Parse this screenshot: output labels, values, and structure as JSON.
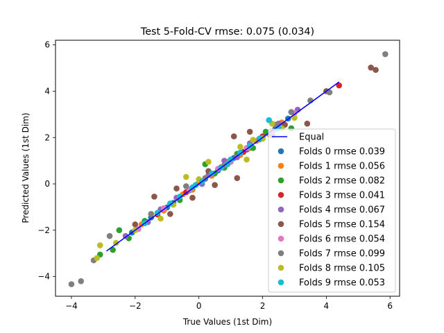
{
  "chart_data": {
    "type": "scatter",
    "title": "Test 5-Fold-CV rmse: 0.075 (0.034)",
    "xlabel": "True Values (1st Dim)",
    "ylabel": "Predicted Values (1st Dim)",
    "xlim": [
      -4.5,
      6.3
    ],
    "ylim": [
      -4.85,
      6.2
    ],
    "xticks": [
      -4,
      -2,
      0,
      2,
      4,
      6
    ],
    "yticks": [
      -4,
      -2,
      0,
      2,
      4,
      6
    ],
    "grid": false,
    "legend_position": "lower right",
    "line": {
      "name": "Equal",
      "color": "#0000ff",
      "x": [
        -2.9,
        4.4
      ],
      "y": [
        -2.9,
        4.4
      ]
    },
    "series": [
      {
        "name": "Folds 0 rmse 0.039",
        "color": "#1f77b4",
        "points": [
          [
            -2.1,
            -2.1
          ],
          [
            -1.5,
            -1.45
          ],
          [
            -0.8,
            -0.82
          ],
          [
            -0.3,
            -0.28
          ],
          [
            0.2,
            0.22
          ],
          [
            0.6,
            0.58
          ],
          [
            1.1,
            1.12
          ],
          [
            1.5,
            1.48
          ],
          [
            1.9,
            1.92
          ],
          [
            2.4,
            2.38
          ],
          [
            2.8,
            2.82
          ],
          [
            -1.0,
            -1.02
          ],
          [
            0.9,
            0.92
          ]
        ]
      },
      {
        "name": "Folds 1 rmse 0.056",
        "color": "#ff7f0e",
        "points": [
          [
            -1.8,
            -1.75
          ],
          [
            -1.1,
            -1.15
          ],
          [
            -0.5,
            -0.45
          ],
          [
            0.0,
            0.05
          ],
          [
            0.4,
            0.35
          ],
          [
            0.9,
            0.95
          ],
          [
            1.3,
            1.25
          ],
          [
            1.8,
            1.85
          ],
          [
            2.2,
            2.15
          ],
          [
            2.6,
            2.65
          ],
          [
            -0.2,
            -0.25
          ],
          [
            1.6,
            1.55
          ]
        ]
      },
      {
        "name": "Folds 2 rmse 0.082",
        "color": "#2ca02c",
        "points": [
          [
            -3.1,
            -3.05
          ],
          [
            -2.7,
            -2.85
          ],
          [
            -2.5,
            -2.0
          ],
          [
            -2.2,
            -2.35
          ],
          [
            -1.7,
            -1.6
          ],
          [
            -0.9,
            -0.85
          ],
          [
            0.2,
            0.85
          ],
          [
            0.5,
            0.45
          ],
          [
            0.8,
            0.7
          ],
          [
            1.2,
            1.3
          ],
          [
            1.7,
            1.55
          ],
          [
            2.1,
            2.25
          ],
          [
            2.3,
            2.1
          ],
          [
            2.6,
            2.5
          ],
          [
            2.9,
            2.4
          ],
          [
            -0.6,
            -0.7
          ]
        ]
      },
      {
        "name": "Folds 3 rmse 0.041",
        "color": "#d62728",
        "points": [
          [
            4.4,
            4.25
          ],
          [
            -1.3,
            -1.32
          ],
          [
            -0.4,
            -0.36
          ],
          [
            0.7,
            0.72
          ],
          [
            1.4,
            1.38
          ],
          [
            2.0,
            2.05
          ],
          [
            2.5,
            2.48
          ]
        ]
      },
      {
        "name": "Folds 4 rmse 0.067",
        "color": "#9467bd",
        "points": [
          [
            -2.3,
            -2.25
          ],
          [
            -1.6,
            -1.65
          ],
          [
            -0.7,
            -0.6
          ],
          [
            0.3,
            0.38
          ],
          [
            0.8,
            1.0
          ],
          [
            1.2,
            1.15
          ],
          [
            1.6,
            1.75
          ],
          [
            2.0,
            2.0
          ],
          [
            2.5,
            2.6
          ],
          [
            2.9,
            3.1
          ],
          [
            3.1,
            3.2
          ],
          [
            -1.2,
            -1.1
          ],
          [
            0.1,
            0.0
          ]
        ]
      },
      {
        "name": "Folds 5 rmse 0.154",
        "color": "#8c564b",
        "points": [
          [
            5.4,
            5.02
          ],
          [
            5.55,
            4.92
          ],
          [
            3.4,
            2.6
          ],
          [
            -1.4,
            -0.55
          ],
          [
            -0.7,
            -0.2
          ],
          [
            0.5,
            -0.05
          ],
          [
            1.2,
            0.25
          ],
          [
            1.1,
            2.05
          ],
          [
            1.6,
            2.25
          ],
          [
            -0.9,
            -1.3
          ],
          [
            -2.0,
            -1.75
          ],
          [
            2.7,
            2.55
          ],
          [
            0.3,
            0.55
          ],
          [
            -0.2,
            -0.6
          ],
          [
            4.0,
            4.0
          ]
        ]
      },
      {
        "name": "Folds 6 rmse 0.054",
        "color": "#e377c2",
        "points": [
          [
            3.0,
            3.05
          ],
          [
            1.5,
            1.55
          ],
          [
            -0.3,
            -0.25
          ],
          [
            -1.9,
            -1.95
          ],
          [
            2.3,
            2.25
          ],
          [
            0.6,
            0.65
          ],
          [
            -1.1,
            -1.05
          ],
          [
            1.0,
            0.95
          ]
        ]
      },
      {
        "name": "Folds 7 rmse 0.099",
        "color": "#7f7f7f",
        "points": [
          [
            -4.0,
            -4.33
          ],
          [
            -3.7,
            -4.2
          ],
          [
            5.85,
            5.6
          ],
          [
            4.1,
            3.95
          ],
          [
            3.5,
            3.6
          ],
          [
            2.9,
            3.1
          ],
          [
            -3.3,
            -3.3
          ],
          [
            -2.8,
            -2.25
          ],
          [
            -0.4,
            -0.1
          ],
          [
            0.8,
            0.8
          ],
          [
            1.9,
            1.95
          ],
          [
            -1.5,
            -1.3
          ],
          [
            0.2,
            0.25
          ],
          [
            2.4,
            2.55
          ]
        ]
      },
      {
        "name": "Folds 8 rmse 0.105",
        "color": "#bcbd22",
        "points": [
          [
            -3.2,
            -3.2
          ],
          [
            -3.1,
            -2.65
          ],
          [
            -2.6,
            -2.55
          ],
          [
            -1.2,
            -1.5
          ],
          [
            -0.4,
            0.3
          ],
          [
            0.3,
            0.95
          ],
          [
            0.9,
            0.85
          ],
          [
            1.3,
            1.6
          ],
          [
            1.5,
            1.05
          ],
          [
            1.7,
            1.9
          ],
          [
            2.0,
            1.95
          ],
          [
            2.6,
            2.4
          ],
          [
            3.0,
            2.85
          ],
          [
            -2.0,
            -2.0
          ],
          [
            -0.8,
            -0.9
          ],
          [
            0.0,
            0.2
          ],
          [
            2.3,
            2.6
          ]
        ]
      },
      {
        "name": "Folds 9 rmse 0.053",
        "color": "#17becf",
        "points": [
          [
            -1.7,
            -1.7
          ],
          [
            -1.3,
            -1.25
          ],
          [
            -0.9,
            -0.85
          ],
          [
            -0.6,
            -0.55
          ],
          [
            -0.2,
            -0.15
          ],
          [
            0.1,
            0.1
          ],
          [
            0.4,
            0.45
          ],
          [
            0.7,
            0.7
          ],
          [
            1.0,
            1.05
          ],
          [
            1.3,
            1.35
          ],
          [
            1.6,
            1.65
          ],
          [
            1.9,
            1.95
          ],
          [
            2.2,
            2.75
          ],
          [
            2.5,
            2.4
          ],
          [
            -0.1,
            -0.05
          ],
          [
            0.9,
            0.85
          ]
        ]
      }
    ]
  }
}
